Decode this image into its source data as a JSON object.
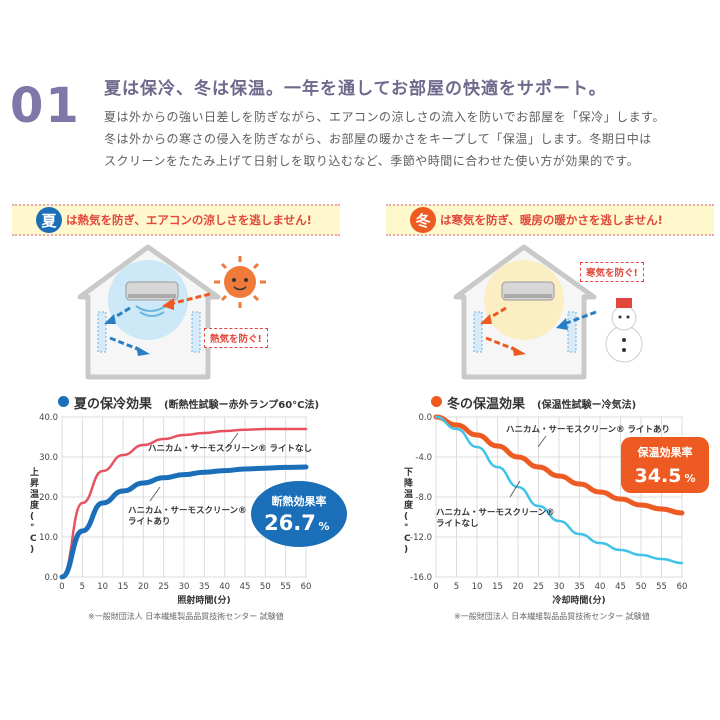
{
  "section_number": "01",
  "headline": "夏は保冷、冬は保温。一年を通してお部屋の快適をサポート。",
  "body_lines": [
    "夏は外からの強い日差しを防ぎながら、エアコンの涼しさの流入を防いでお部屋を「保冷」します。",
    "冬は外からの寒さの侵入を防ぎながら、お部屋の暖かさをキープして「保温」します。冬期日中は",
    "スクリーンをたたみ上げて日射しを取り込むなど、季節や時間に合わせた使い方が効果的です。"
  ],
  "summer": {
    "badge": "夏",
    "banner": "は熱気を防ぎ、エアコンの涼しさを逃しません!",
    "tag": "熱気を防ぐ!",
    "chart_title": "夏の保冷効果",
    "chart_method": "(断熱性試験ー赤外ランプ60°C法)",
    "rate_label": "断熱効果率",
    "rate_value": "26.7",
    "rate_unit": "%",
    "note": "※一般財団法人 日本繊維製品品質技術センター 試験値",
    "colors": {
      "accent": "#1a6fb8",
      "badge": "#1a6fb8",
      "line_off": "#e8525f",
      "line_on": "#1a6fb8"
    }
  },
  "winter": {
    "badge": "冬",
    "banner": "は寒気を防ぎ、暖房の暖かさを逃しません!",
    "tag": "寒気を防ぐ!",
    "chart_title": "冬の保温効果",
    "chart_method": "(保温性試験ー冷気法)",
    "rate_label": "保温効果率",
    "rate_value": "34.5",
    "rate_unit": "%",
    "note": "※一般財団法人 日本繊維製品品質技術センター 試験値",
    "colors": {
      "accent": "#ee5b22",
      "badge": "#ee5b22",
      "line_on": "#ee5b22",
      "line_off": "#3fc3e6"
    }
  },
  "chart_data": [
    {
      "type": "line",
      "title": "夏の保冷効果",
      "subtitle": "(断熱性試験ー赤外ランプ60°C法)",
      "xlabel": "照射時間(分)",
      "ylabel": "上昇温度(°C)",
      "xlim": [
        0,
        60
      ],
      "ylim": [
        0,
        40
      ],
      "x_ticks": [
        0,
        5,
        10,
        15,
        20,
        25,
        30,
        35,
        40,
        45,
        50,
        55,
        60
      ],
      "y_ticks": [
        0.0,
        10.0,
        20.0,
        30.0,
        40.0
      ],
      "y_tick_labels": [
        "0.0",
        "10.0",
        "20.0",
        "30.0",
        "40.0"
      ],
      "grid": true,
      "series": [
        {
          "name": "ハニカム・サーモスクリーン® ライトなし",
          "color": "#e8525f",
          "x": [
            0,
            5,
            10,
            15,
            20,
            25,
            30,
            35,
            40,
            45,
            50,
            55,
            60
          ],
          "y": [
            0,
            18.5,
            26.5,
            30.5,
            33,
            34.5,
            35.5,
            36,
            36.5,
            36.8,
            37,
            37,
            37
          ]
        },
        {
          "name": "ハニカム・サーモスクリーン® ライトあり",
          "color": "#1a6fb8",
          "x": [
            0,
            5,
            10,
            15,
            20,
            25,
            30,
            35,
            40,
            45,
            50,
            55,
            60
          ],
          "y": [
            0,
            11.5,
            18.5,
            21.5,
            23.5,
            24.8,
            25.6,
            26.2,
            26.6,
            27,
            27.2,
            27.4,
            27.5
          ]
        }
      ]
    },
    {
      "type": "line",
      "title": "冬の保温効果",
      "subtitle": "(保温性試験ー冷気法)",
      "xlabel": "冷却時間(分)",
      "ylabel": "下降温度(°C)",
      "xlim": [
        0,
        60
      ],
      "ylim": [
        -16,
        0
      ],
      "x_ticks": [
        0,
        5,
        10,
        15,
        20,
        25,
        30,
        35,
        40,
        45,
        50,
        55,
        60
      ],
      "y_ticks": [
        0.0,
        -4.0,
        -8.0,
        -12.0,
        -16.0
      ],
      "y_tick_labels": [
        "0.0",
        "-4.0",
        "-8.0",
        "-12.0",
        "-16.0"
      ],
      "grid": true,
      "series": [
        {
          "name": "ハニカム・サーモスクリーン® ライトあり",
          "color": "#ee5b22",
          "x": [
            0,
            5,
            10,
            15,
            20,
            25,
            30,
            35,
            40,
            45,
            50,
            55,
            60
          ],
          "y": [
            0,
            -0.8,
            -1.8,
            -2.9,
            -4.0,
            -5.0,
            -5.9,
            -6.7,
            -7.5,
            -8.2,
            -8.8,
            -9.2,
            -9.6
          ]
        },
        {
          "name": "ハニカム・サーモスクリーン® ライトなし",
          "color": "#3fc3e6",
          "x": [
            0,
            5,
            10,
            15,
            20,
            25,
            30,
            35,
            40,
            45,
            50,
            55,
            60
          ],
          "y": [
            0,
            -1.2,
            -3.0,
            -5.0,
            -7.0,
            -8.9,
            -10.4,
            -11.7,
            -12.6,
            -13.3,
            -13.8,
            -14.2,
            -14.6
          ]
        }
      ]
    }
  ]
}
